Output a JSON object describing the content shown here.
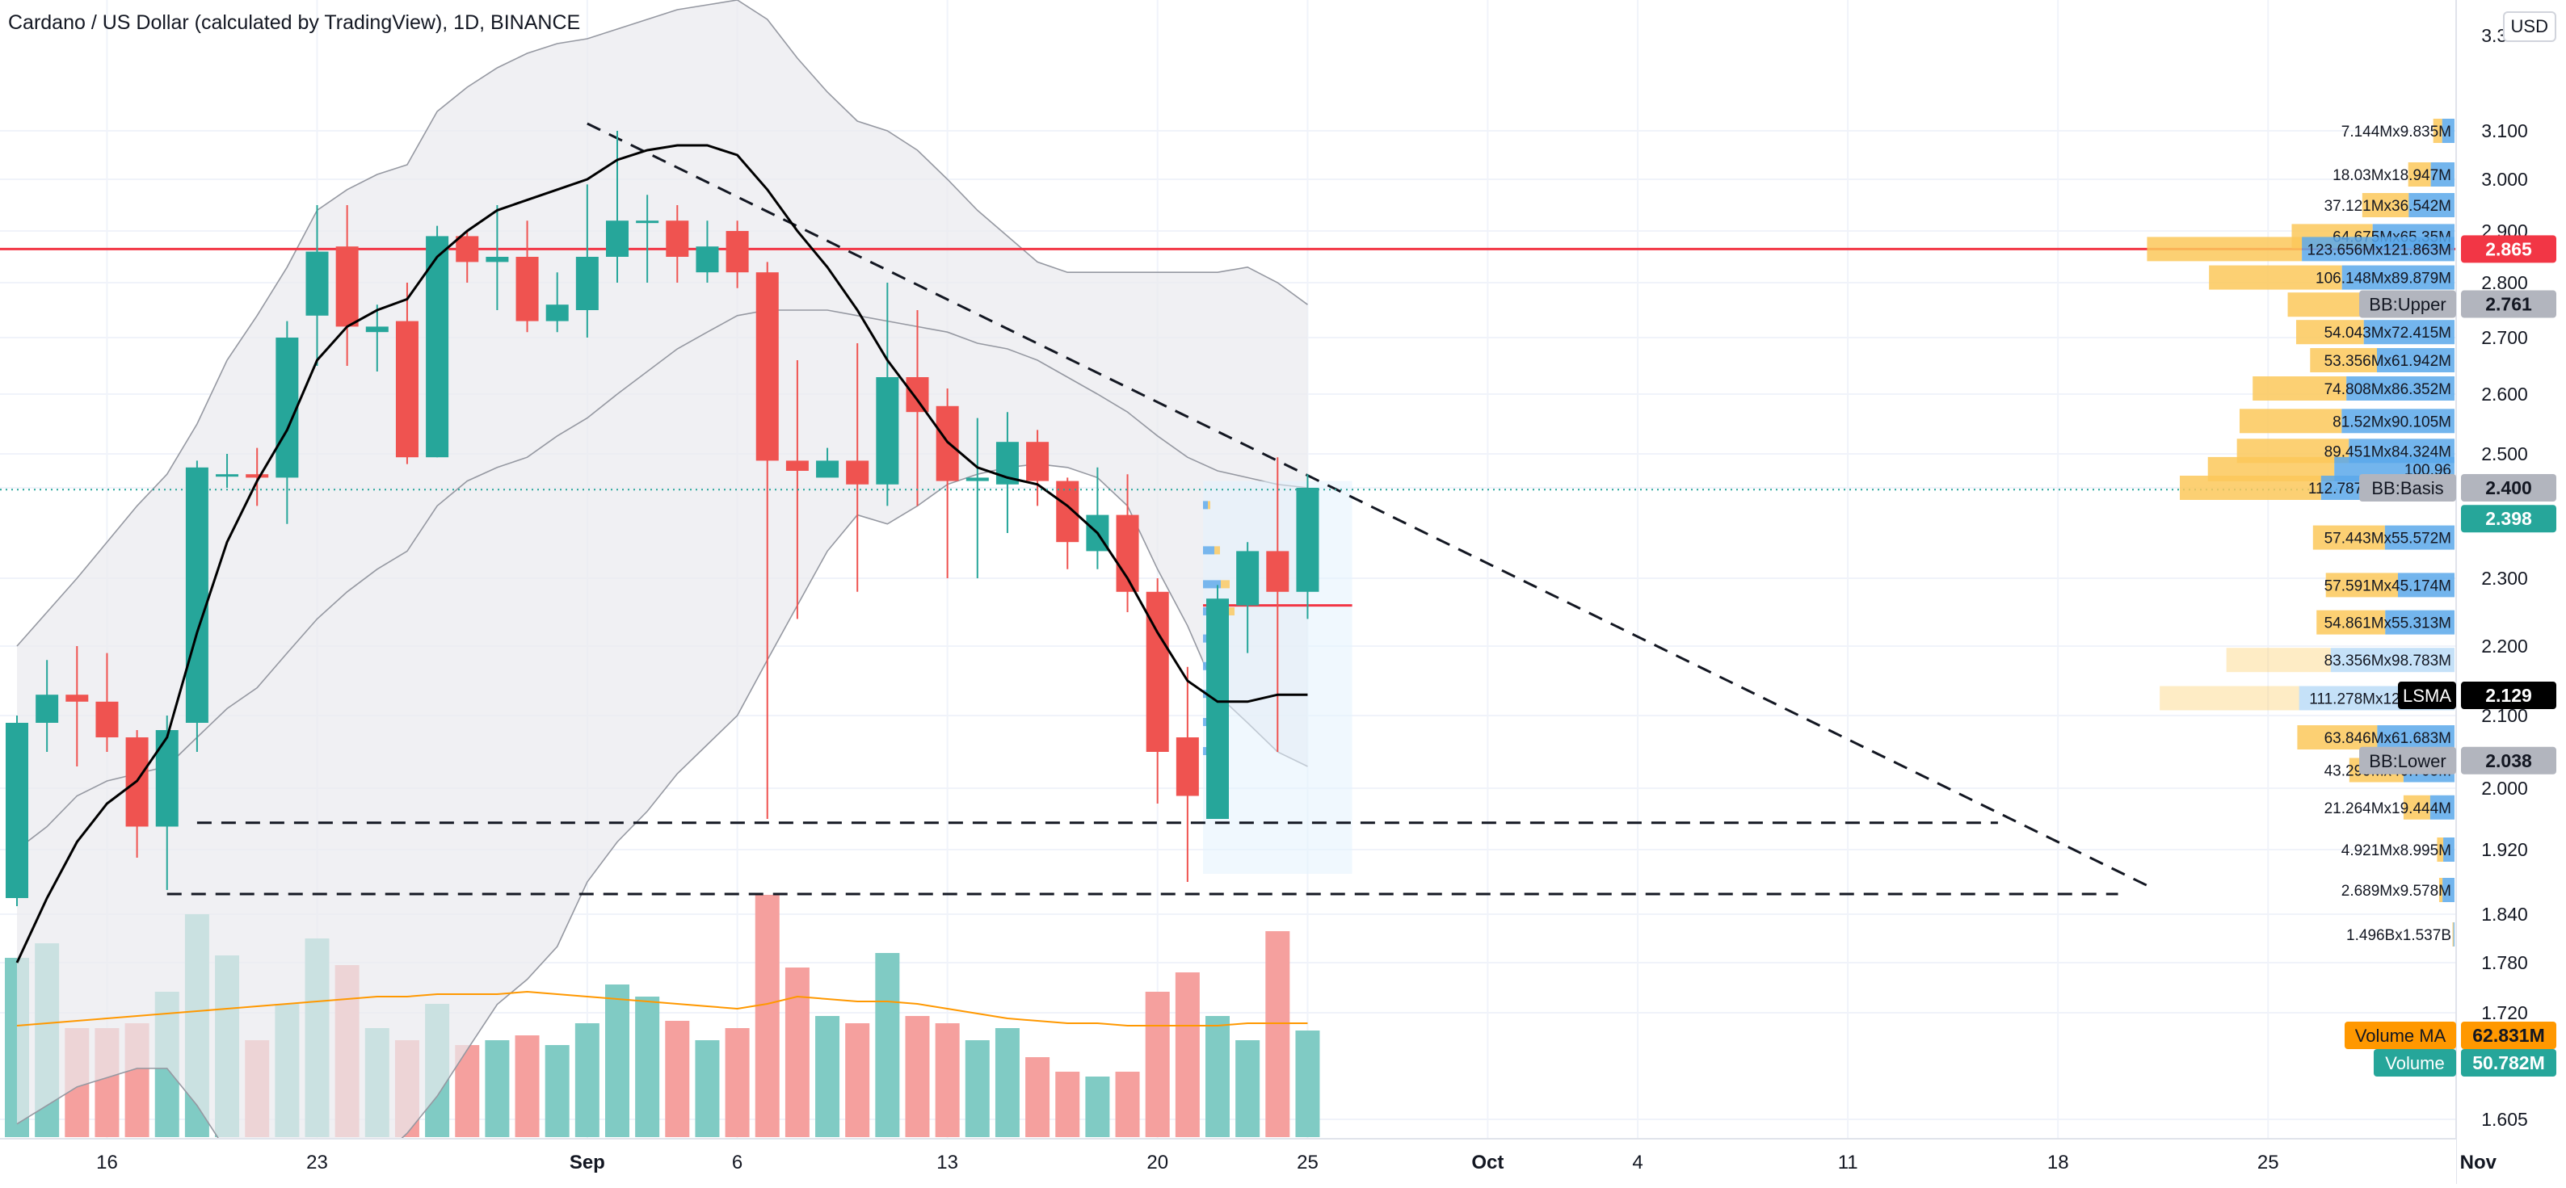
{
  "header": {
    "title": "Cardano / US Dollar (calculated by TradingView), 1D, BINANCE",
    "currency": "USD"
  },
  "colors": {
    "up": "#26a69a",
    "down": "#ef5350",
    "volume_up": "#80cbc4",
    "volume_down": "#f5a09e",
    "bollinger_fill": "#e9eaee",
    "lsma": "#000000",
    "volume_ma": "#ff9800",
    "resistance_line": "#f23645",
    "vp_up": "#fbc85a",
    "vp_down": "#5aa8ea"
  },
  "chart_data": {
    "type": "candlestick",
    "symbol": "ADAUSD",
    "timeframe": "1D",
    "exchange": "BINANCE",
    "x_ticks": [
      "16",
      "23",
      "Sep",
      "6",
      "13",
      "20",
      "25",
      "Oct",
      "4",
      "11",
      "18",
      "25",
      "Nov"
    ],
    "y_ticks": [
      "3.100",
      "3.000",
      "2.900",
      "2.800",
      "2.700",
      "2.600",
      "2.500",
      "2.400",
      "2.300",
      "2.200",
      "2.100",
      "2.000",
      "1.920",
      "1.840",
      "1.780",
      "1.720",
      "1.605"
    ],
    "top_tick_partial": "3.300",
    "ohlcv": [
      {
        "date": "2021-08-13",
        "o": 1.86,
        "h": 2.1,
        "l": 1.85,
        "c": 2.09,
        "v": 74
      },
      {
        "date": "2021-08-14",
        "o": 2.09,
        "h": 2.18,
        "l": 2.05,
        "c": 2.13,
        "v": 80
      },
      {
        "date": "2021-08-15",
        "o": 2.13,
        "h": 2.2,
        "l": 2.03,
        "c": 2.12,
        "v": 45
      },
      {
        "date": "2021-08-16",
        "o": 2.12,
        "h": 2.19,
        "l": 2.05,
        "c": 2.07,
        "v": 45
      },
      {
        "date": "2021-08-17",
        "o": 2.07,
        "h": 2.08,
        "l": 1.91,
        "c": 1.95,
        "v": 47
      },
      {
        "date": "2021-08-18",
        "o": 1.95,
        "h": 2.1,
        "l": 1.87,
        "c": 2.08,
        "v": 60
      },
      {
        "date": "2021-08-19",
        "o": 2.09,
        "h": 2.48,
        "l": 2.05,
        "c": 2.46,
        "v": 92
      },
      {
        "date": "2021-08-20",
        "o": 2.44,
        "h": 2.5,
        "l": 2.4,
        "c": 2.44,
        "v": 75
      },
      {
        "date": "2021-08-21",
        "o": 2.44,
        "h": 2.51,
        "l": 2.38,
        "c": 2.43,
        "v": 40
      },
      {
        "date": "2021-08-22",
        "o": 2.43,
        "h": 2.73,
        "l": 2.36,
        "c": 2.7,
        "v": 55
      },
      {
        "date": "2021-08-23",
        "o": 2.74,
        "h": 2.95,
        "l": 2.65,
        "c": 2.86,
        "v": 82
      },
      {
        "date": "2021-08-24",
        "o": 2.87,
        "h": 2.95,
        "l": 2.65,
        "c": 2.72,
        "v": 71
      },
      {
        "date": "2021-08-25",
        "o": 2.71,
        "h": 2.76,
        "l": 2.64,
        "c": 2.72,
        "v": 45
      },
      {
        "date": "2021-08-26",
        "o": 2.73,
        "h": 2.8,
        "l": 2.47,
        "c": 2.49,
        "v": 40
      },
      {
        "date": "2021-08-27",
        "o": 2.49,
        "h": 2.91,
        "l": 2.49,
        "c": 2.89,
        "v": 55
      },
      {
        "date": "2021-08-28",
        "o": 2.89,
        "h": 2.9,
        "l": 2.8,
        "c": 2.84,
        "v": 38
      },
      {
        "date": "2021-08-29",
        "o": 2.84,
        "h": 2.95,
        "l": 2.75,
        "c": 2.85,
        "v": 40
      },
      {
        "date": "2021-08-30",
        "o": 2.85,
        "h": 2.92,
        "l": 2.71,
        "c": 2.73,
        "v": 42
      },
      {
        "date": "2021-08-31",
        "o": 2.73,
        "h": 2.82,
        "l": 2.71,
        "c": 2.76,
        "v": 38
      },
      {
        "date": "2021-09-01",
        "o": 2.75,
        "h": 2.99,
        "l": 2.7,
        "c": 2.85,
        "v": 47
      },
      {
        "date": "2021-09-02",
        "o": 2.85,
        "h": 3.1,
        "l": 2.8,
        "c": 2.92,
        "v": 63
      },
      {
        "date": "2021-09-03",
        "o": 2.92,
        "h": 2.97,
        "l": 2.8,
        "c": 2.92,
        "v": 58
      },
      {
        "date": "2021-09-04",
        "o": 2.92,
        "h": 2.95,
        "l": 2.8,
        "c": 2.85,
        "v": 48
      },
      {
        "date": "2021-09-05",
        "o": 2.82,
        "h": 2.92,
        "l": 2.8,
        "c": 2.87,
        "v": 40
      },
      {
        "date": "2021-09-06",
        "o": 2.9,
        "h": 2.92,
        "l": 2.79,
        "c": 2.82,
        "v": 45
      },
      {
        "date": "2021-09-07",
        "o": 2.82,
        "h": 2.84,
        "l": 1.96,
        "c": 2.48,
        "v": 100
      },
      {
        "date": "2021-09-08",
        "o": 2.48,
        "h": 2.66,
        "l": 2.24,
        "c": 2.45,
        "v": 70
      },
      {
        "date": "2021-09-09",
        "o": 2.43,
        "h": 2.51,
        "l": 2.44,
        "c": 2.48,
        "v": 50
      },
      {
        "date": "2021-09-10",
        "o": 2.48,
        "h": 2.69,
        "l": 2.28,
        "c": 2.41,
        "v": 47
      },
      {
        "date": "2021-09-11",
        "o": 2.41,
        "h": 2.8,
        "l": 2.38,
        "c": 2.63,
        "v": 76
      },
      {
        "date": "2021-09-12",
        "o": 2.63,
        "h": 2.75,
        "l": 2.38,
        "c": 2.57,
        "v": 50
      },
      {
        "date": "2021-09-13",
        "o": 2.58,
        "h": 2.61,
        "l": 2.3,
        "c": 2.42,
        "v": 47
      },
      {
        "date": "2021-09-14",
        "o": 2.42,
        "h": 2.56,
        "l": 2.3,
        "c": 2.43,
        "v": 40
      },
      {
        "date": "2021-09-15",
        "o": 2.41,
        "h": 2.57,
        "l": 2.35,
        "c": 2.52,
        "v": 45
      },
      {
        "date": "2021-09-16",
        "o": 2.52,
        "h": 2.54,
        "l": 2.38,
        "c": 2.42,
        "v": 33
      },
      {
        "date": "2021-09-17",
        "o": 2.42,
        "h": 2.43,
        "l": 2.31,
        "c": 2.34,
        "v": 27
      },
      {
        "date": "2021-09-18",
        "o": 2.33,
        "h": 2.46,
        "l": 2.31,
        "c": 2.37,
        "v": 25
      },
      {
        "date": "2021-09-19",
        "o": 2.37,
        "h": 2.44,
        "l": 2.25,
        "c": 2.28,
        "v": 27
      },
      {
        "date": "2021-09-20",
        "o": 2.28,
        "h": 2.3,
        "l": 1.98,
        "c": 2.05,
        "v": 60
      },
      {
        "date": "2021-09-21",
        "o": 2.07,
        "h": 2.17,
        "l": 1.88,
        "c": 1.99,
        "v": 68
      },
      {
        "date": "2021-09-22",
        "o": 1.96,
        "h": 2.29,
        "l": 1.96,
        "c": 2.27,
        "v": 50
      },
      {
        "date": "2021-09-23",
        "o": 2.26,
        "h": 2.34,
        "l": 2.19,
        "c": 2.33,
        "v": 40
      },
      {
        "date": "2021-09-24",
        "o": 2.33,
        "h": 2.49,
        "l": 2.05,
        "c": 2.28,
        "v": 85
      },
      {
        "date": "2021-09-25",
        "o": 2.28,
        "h": 2.44,
        "l": 2.24,
        "c": 2.4,
        "v": 44
      }
    ],
    "volume_ma": [
      46,
      47,
      48,
      49,
      50,
      51,
      52,
      53,
      54,
      55,
      56,
      57,
      58,
      58,
      59,
      59,
      59,
      60,
      59,
      58,
      57,
      56,
      55,
      54,
      53,
      55,
      58,
      57,
      56,
      56,
      55,
      53,
      51,
      49,
      48,
      47,
      47,
      46,
      46,
      46,
      46,
      47,
      47,
      47
    ],
    "lsma": [
      1.78,
      1.86,
      1.93,
      1.98,
      2.01,
      2.07,
      2.22,
      2.34,
      2.42,
      2.54,
      2.66,
      2.72,
      2.75,
      2.77,
      2.85,
      2.9,
      2.94,
      2.96,
      2.98,
      3.0,
      3.04,
      3.06,
      3.07,
      3.07,
      3.05,
      2.98,
      2.9,
      2.83,
      2.75,
      2.66,
      2.59,
      2.52,
      2.46,
      2.43,
      2.41,
      2.38,
      2.35,
      2.3,
      2.22,
      2.15,
      2.12,
      2.12,
      2.13,
      2.13
    ],
    "bollinger": {
      "upper": [
        2.2,
        2.25,
        2.3,
        2.34,
        2.38,
        2.44,
        2.55,
        2.66,
        2.74,
        2.83,
        2.94,
        2.98,
        3.01,
        3.03,
        3.14,
        3.19,
        3.23,
        3.26,
        3.28,
        3.29,
        3.31,
        3.33,
        3.35,
        3.36,
        3.37,
        3.33,
        3.25,
        3.18,
        3.12,
        3.1,
        3.06,
        3.0,
        2.94,
        2.89,
        2.84,
        2.82,
        2.82,
        2.82,
        2.82,
        2.82,
        2.82,
        2.83,
        2.8,
        2.76
      ],
      "basis": [
        1.92,
        1.95,
        1.99,
        2.01,
        2.02,
        2.03,
        2.07,
        2.11,
        2.14,
        2.19,
        2.24,
        2.28,
        2.31,
        2.33,
        2.38,
        2.42,
        2.46,
        2.49,
        2.53,
        2.56,
        2.6,
        2.64,
        2.68,
        2.71,
        2.74,
        2.75,
        2.75,
        2.75,
        2.74,
        2.73,
        2.72,
        2.71,
        2.69,
        2.68,
        2.66,
        2.63,
        2.6,
        2.57,
        2.53,
        2.49,
        2.45,
        2.43,
        2.41,
        2.4
      ],
      "lower": [
        1.6,
        1.62,
        1.64,
        1.65,
        1.66,
        1.66,
        1.62,
        1.57,
        1.53,
        1.5,
        1.5,
        1.53,
        1.56,
        1.59,
        1.63,
        1.68,
        1.73,
        1.76,
        1.8,
        1.88,
        1.93,
        1.97,
        2.02,
        2.06,
        2.1,
        2.18,
        2.26,
        2.33,
        2.37,
        2.36,
        2.38,
        2.41,
        2.44,
        2.46,
        2.47,
        2.46,
        2.43,
        2.38,
        2.31,
        2.23,
        2.13,
        2.09,
        2.05,
        2.03
      ]
    },
    "resistance": {
      "price": 2.865,
      "label": "2.865"
    },
    "trendline": {
      "from": {
        "index": 19,
        "price": 3.115
      },
      "to": {
        "index": 71,
        "price": 1.875
      }
    },
    "support_lines": [
      {
        "from_index": 6,
        "to_index": 66,
        "price": 1.955
      },
      {
        "from_index": 5,
        "to_index": 70,
        "price": 1.865
      }
    ],
    "short_level": {
      "from_index": 40,
      "to_index": 44,
      "price": 2.26
    },
    "vp_box": {
      "from_index": 40,
      "to_index": 44,
      "top": 2.42,
      "bottom": 1.89
    },
    "volume_profile": [
      {
        "price": 3.1,
        "label": "7.144Mx9.835M",
        "up": 7.144,
        "down": 9.835
      },
      {
        "price": 3.01,
        "label": "18.03Mx18.947M",
        "up": 18.03,
        "down": 18.947
      },
      {
        "price": 2.95,
        "label": "37.121Mx36.542M",
        "up": 37.121,
        "down": 36.542
      },
      {
        "price": 2.89,
        "label": "64.675Mx65.35M",
        "up": 64.675,
        "down": 65.35
      },
      {
        "price": 2.865,
        "label": "123.656Mx121.863M",
        "up": 123.656,
        "down": 121.863
      },
      {
        "price": 2.81,
        "label": "106.148Mx89.879M",
        "up": 106.148,
        "down": 89.879
      },
      {
        "price": 2.76,
        "label": "71.2",
        "up": 71.2,
        "down": 62
      },
      {
        "price": 2.71,
        "label": "54.043Mx72.415M",
        "up": 54.043,
        "down": 72.415
      },
      {
        "price": 2.66,
        "label": "53.356Mx61.942M",
        "up": 53.356,
        "down": 61.942
      },
      {
        "price": 2.61,
        "label": "74.808Mx86.352M",
        "up": 74.808,
        "down": 86.352
      },
      {
        "price": 2.555,
        "label": "81.52Mx90.105M",
        "up": 81.52,
        "down": 90.105
      },
      {
        "price": 2.505,
        "label": "89.451Mx84.324M",
        "up": 89.451,
        "down": 84.324
      },
      {
        "price": 2.455,
        "label": "100.96",
        "up": 100.96,
        "down": 96
      },
      {
        "price": 2.4,
        "label": "112.787Mx106.561M",
        "up": 112.787,
        "down": 106.561
      },
      {
        "price": 2.345,
        "label": "57.443Mx55.572M",
        "up": 57.443,
        "down": 55.572
      },
      {
        "price": 2.29,
        "label": "57.591Mx45.174M",
        "up": 57.591,
        "down": 45.174
      },
      {
        "price": 2.235,
        "label": "54.861Mx55.313M",
        "up": 54.861,
        "down": 55.313
      },
      {
        "price": 2.18,
        "label": "83.356Mx98.783M",
        "up": 83.356,
        "down": 98.783
      },
      {
        "price": 2.125,
        "label": "111.278Mx124.097M",
        "up": 111.278,
        "down": 124.097
      },
      {
        "price": 2.07,
        "label": "63.846Mx61.683M",
        "up": 63.846,
        "down": 61.683
      },
      {
        "price": 2.025,
        "label": "43.299Mx40.705M",
        "up": 43.299,
        "down": 40.705
      },
      {
        "price": 1.975,
        "label": "21.264Mx19.444M",
        "up": 21.264,
        "down": 19.444
      },
      {
        "price": 1.92,
        "label": "4.921Mx8.995M",
        "up": 4.921,
        "down": 8.995
      },
      {
        "price": 1.87,
        "label": "2.689Mx9.578M",
        "up": 2.689,
        "down": 9.578
      },
      {
        "price": 1.815,
        "label": "1.496Bx1.537B",
        "up": 0.8,
        "down": 0.8
      }
    ],
    "price_labels": [
      {
        "price": 2.865,
        "text": "2.865",
        "bg": "#f23645",
        "fg": "#ffffff"
      },
      {
        "price": 2.761,
        "name": "BB:Upper",
        "text": "2.761",
        "bg": "#b2b5be",
        "fg": "#131722"
      },
      {
        "price": 2.4,
        "name": "BB:Basis",
        "text": "2.400",
        "bg": "#b2b5be",
        "fg": "#131722"
      },
      {
        "price": 2.398,
        "text": "2.398",
        "bg": "#26a69a",
        "fg": "#ffffff"
      },
      {
        "price": 2.129,
        "name": "LSMA",
        "text": "2.129",
        "bg": "#000000",
        "fg": "#ffffff"
      },
      {
        "price": 2.038,
        "name": "BB:Lower",
        "text": "2.038",
        "bg": "#b2b5be",
        "fg": "#131722"
      }
    ],
    "volume_labels": [
      {
        "name": "Volume MA",
        "text": "62.831M",
        "bg": "#ff9800",
        "fg": "#131722"
      },
      {
        "name": "Volume",
        "text": "50.782M",
        "bg": "#26a69a",
        "fg": "#ffffff"
      }
    ],
    "grid": true
  }
}
